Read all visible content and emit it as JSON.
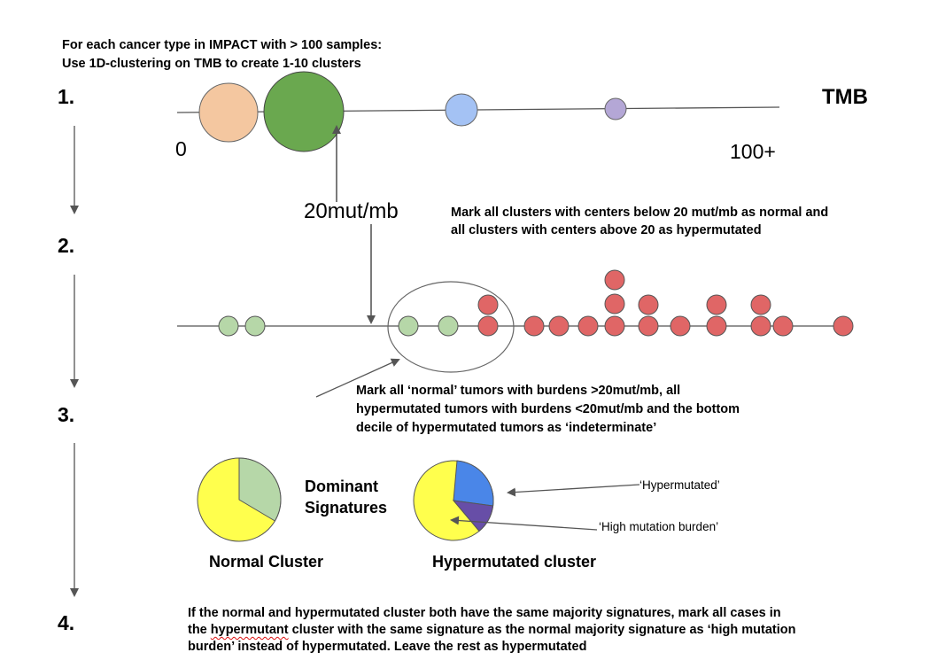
{
  "intro": {
    "line1": "For each cancer type in IMPACT with > 100 samples:",
    "line2": "Use 1D-clustering on TMB to create 1-10 clusters"
  },
  "steps": [
    "1.",
    "2.",
    "3.",
    "4."
  ],
  "axis": {
    "label": "TMB",
    "min_label": "0",
    "max_label": "100+"
  },
  "threshold_label": "20mut/mb",
  "step2_note": {
    "line1": "Mark all clusters with centers below 20 mut/mb as normal and",
    "line2": "all clusters with centers above 20 as hypermutated"
  },
  "step3_note": {
    "line1": "Mark all ‘normal’ tumors with burdens >20mut/mb, all",
    "line2": "hypermutated tumors with burdens <20mut/mb and the bottom",
    "line3": "decile of hypermutated tumors as ‘indeterminate’"
  },
  "dominant_signatures": {
    "line1": "Dominant",
    "line2": "Signatures"
  },
  "pie_titles": {
    "normal": "Normal Cluster",
    "hyper": "Hypermutated cluster"
  },
  "callouts": {
    "hypermutated": "‘Hypermutated’",
    "high_burden": "‘High mutation burden’"
  },
  "step4_note": {
    "line1": "If the normal and hypermutated cluster both have the same majority signatures, mark all cases in",
    "line2_pre": "the ",
    "line2_word": "hypermutant",
    "line2_post": " cluster with the same signature as the normal majority signature as ‘high mutation",
    "line3": "burden’ instead of hypermutated.  Leave the rest as hypermutated"
  },
  "colors": {
    "orange_cluster": "#f4c7a0",
    "green_cluster": "#6aa84f",
    "blue_cluster": "#a4c2f4",
    "purple_cluster": "#b4a7d6",
    "normal_tumor": "#b6d7a8",
    "hyper_tumor": "#e06666",
    "pie_yellow": "#ffff4d",
    "pie_green": "#b6d7a8",
    "pie_blue": "#4a86e8",
    "pie_purple": "#674ea7"
  }
}
